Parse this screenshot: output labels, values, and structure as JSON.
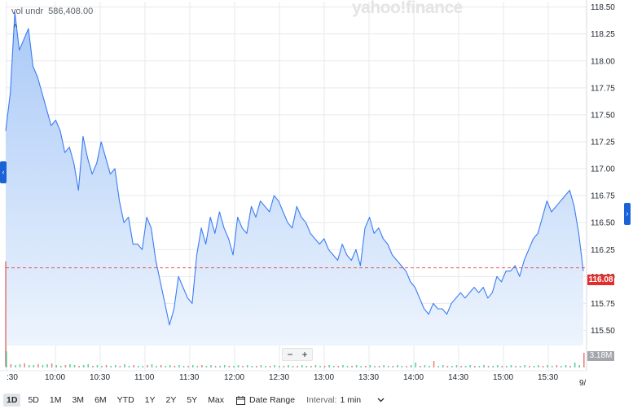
{
  "header": {
    "volume_label": "vol undr",
    "volume_value": "586,408.00",
    "collapse_glyph": "^",
    "watermark": "yahoo!finance"
  },
  "chart_data": {
    "type": "area",
    "title": "",
    "xlabel": "",
    "ylabel": "",
    "ylim": [
      115.36,
      118.55
    ],
    "y_ticks": [
      "118.50",
      "118.25",
      "118.00",
      "117.75",
      "117.50",
      "117.25",
      "117.00",
      "116.75",
      "116.50",
      "116.25",
      "116.00",
      "115.75",
      "115.50"
    ],
    "x_ticks": [
      ":30",
      "10:00",
      "10:30",
      "11:00",
      "11:30",
      "12:00",
      "12:30",
      "13:00",
      "13:30",
      "14:00",
      "14:30",
      "15:00",
      "15:30"
    ],
    "x_edge_label": "9/",
    "grid": true,
    "series": [
      {
        "x": [
          "09:30",
          "09:33",
          "09:36",
          "09:39",
          "09:42",
          "09:45",
          "09:48",
          "09:51",
          "09:54",
          "09:57",
          "10:00",
          "10:03",
          "10:06",
          "10:09",
          "10:12",
          "10:15",
          "10:18",
          "10:21",
          "10:24",
          "10:27",
          "10:30",
          "10:33",
          "10:36",
          "10:39",
          "10:42",
          "10:45",
          "10:48",
          "10:51",
          "10:54",
          "10:57",
          "11:00",
          "11:03",
          "11:06",
          "11:09",
          "11:12",
          "11:15",
          "11:18",
          "11:21",
          "11:24",
          "11:27",
          "11:30",
          "11:33",
          "11:36",
          "11:39",
          "11:42",
          "11:45",
          "11:48",
          "11:51",
          "11:54",
          "11:57",
          "12:00",
          "12:03",
          "12:06",
          "12:09",
          "12:12",
          "12:15",
          "12:18",
          "12:21",
          "12:24",
          "12:27",
          "12:30",
          "12:33",
          "12:36",
          "12:39",
          "12:42",
          "12:45",
          "12:48",
          "12:51",
          "12:54",
          "12:57",
          "13:00",
          "13:03",
          "13:06",
          "13:09",
          "13:12",
          "13:15",
          "13:18",
          "13:21",
          "13:24",
          "13:27",
          "13:30",
          "13:33",
          "13:36",
          "13:39",
          "13:42",
          "13:45",
          "13:48",
          "13:51",
          "13:54",
          "13:57",
          "14:00",
          "14:03",
          "14:06",
          "14:09",
          "14:12",
          "14:15",
          "14:18",
          "14:21",
          "14:24",
          "14:27",
          "14:30",
          "14:33",
          "14:36",
          "14:39",
          "14:42",
          "14:45",
          "14:48",
          "14:51",
          "14:54",
          "14:57",
          "15:00",
          "15:03",
          "15:06",
          "15:09",
          "15:12",
          "15:15",
          "15:18",
          "15:21",
          "15:24",
          "15:27",
          "15:30",
          "15:33",
          "15:36",
          "15:39",
          "15:42",
          "15:45",
          "15:48",
          "15:51"
        ],
        "values": [
          117.35,
          117.7,
          118.45,
          118.1,
          118.2,
          118.3,
          117.95,
          117.85,
          117.7,
          117.55,
          117.4,
          117.45,
          117.35,
          117.15,
          117.2,
          117.05,
          116.8,
          117.3,
          117.1,
          116.95,
          117.05,
          117.25,
          117.1,
          116.95,
          117.0,
          116.7,
          116.5,
          116.55,
          116.3,
          116.3,
          116.25,
          116.55,
          116.45,
          116.15,
          115.95,
          115.75,
          115.55,
          115.7,
          116.0,
          115.9,
          115.8,
          115.75,
          116.2,
          116.45,
          116.3,
          116.55,
          116.4,
          116.6,
          116.45,
          116.35,
          116.2,
          116.55,
          116.45,
          116.4,
          116.65,
          116.55,
          116.7,
          116.65,
          116.6,
          116.75,
          116.7,
          116.6,
          116.5,
          116.45,
          116.65,
          116.55,
          116.5,
          116.4,
          116.35,
          116.3,
          116.35,
          116.25,
          116.2,
          116.15,
          116.3,
          116.2,
          116.15,
          116.25,
          116.1,
          116.45,
          116.55,
          116.4,
          116.45,
          116.35,
          116.3,
          116.2,
          116.15,
          116.1,
          116.05,
          115.95,
          115.9,
          115.8,
          115.7,
          115.65,
          115.75,
          115.7,
          115.7,
          115.65,
          115.75,
          115.8,
          115.85,
          115.8,
          115.85,
          115.9,
          115.85,
          115.9,
          115.8,
          115.85,
          116.0,
          115.95,
          116.05,
          116.05,
          116.1,
          116.0,
          116.15,
          116.25,
          116.35,
          116.4,
          116.55,
          116.7,
          116.6,
          116.65,
          116.7,
          116.75,
          116.8,
          116.65,
          116.4,
          116.05
        ],
        "last_price": "116.08",
        "reference_line": 116.08
      }
    ],
    "volume": {
      "label": "3.18M",
      "bars": [
        20,
        4,
        3,
        4,
        5,
        3,
        3,
        4,
        3,
        4,
        5,
        3,
        2,
        3,
        4,
        3,
        2,
        3,
        4,
        2,
        3,
        2,
        3,
        2,
        3,
        2,
        4,
        2,
        3,
        2,
        2,
        3,
        4,
        2,
        3,
        2,
        3,
        2,
        3,
        2,
        2,
        3,
        2,
        3,
        2,
        3,
        2,
        2,
        3,
        2,
        2,
        3,
        2,
        3,
        2,
        2,
        3,
        2,
        2,
        3,
        2,
        2,
        3,
        2,
        2,
        3,
        2,
        2,
        3,
        2,
        2,
        3,
        2,
        2,
        3,
        2,
        2,
        3,
        2,
        2,
        3,
        2,
        2,
        3,
        2,
        2,
        3,
        2,
        2,
        3,
        6,
        2,
        3,
        2,
        8,
        2,
        3,
        2,
        2,
        3,
        2,
        2,
        3,
        2,
        2,
        3,
        2,
        2,
        3,
        2,
        2,
        3,
        2,
        2,
        3,
        2,
        2,
        3,
        2,
        3,
        2,
        3,
        2,
        3,
        2,
        6,
        3,
        18
      ],
      "bar_colors_up": "#1fb978",
      "bar_colors_down": "#eb4d4b"
    }
  },
  "colors": {
    "line": "#3b7cf2",
    "area_top": "#a9c9f7",
    "area_bottom": "#edf4fd",
    "grid": "#e7e9ec",
    "price_tag": "#e0302e",
    "reference_line": "#e0302e",
    "nav_tab": "#1a62d6",
    "volume_tag": "#a3a7ab"
  },
  "zoom": {
    "minus": "−",
    "plus": "+"
  },
  "nav": {
    "left_glyph": "‹",
    "right_glyph": "›"
  },
  "toolbar": {
    "ranges": [
      "1D",
      "5D",
      "1M",
      "3M",
      "6M",
      "YTD",
      "1Y",
      "2Y",
      "5Y",
      "Max"
    ],
    "active_range": "1D",
    "date_range_label": "Date Range",
    "interval_label": "Interval:",
    "interval_value": "1 min",
    "calendar_icon": "calendar-icon",
    "caret_icon": "chevron-down-icon"
  }
}
